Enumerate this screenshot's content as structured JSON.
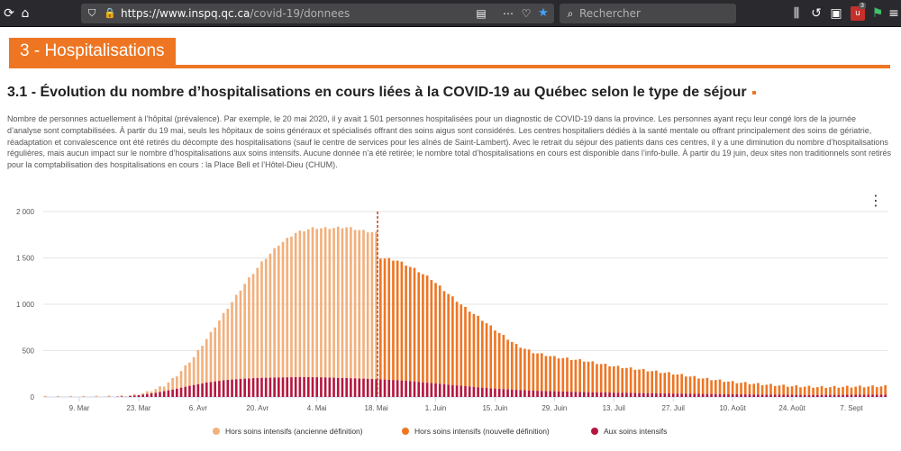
{
  "browser": {
    "url_host": "https://www.inspq.qc.ca",
    "url_path": "/covid-19/donnees",
    "search_placeholder": "Rechercher",
    "addon_badge": "3"
  },
  "section": {
    "title": "3 - Hospitalisations"
  },
  "chart_heading": "3.1 - Évolution du nombre d’hospitalisations en cours liées à la COVID-19 au Québec selon le type de séjour",
  "description": "Nombre de personnes actuellement à l’hôpital (prévalence). Par exemple, le 20 mai 2020, il y avait 1 501 personnes hospitalisées pour un diagnostic de COVID-19 dans la province. Les personnes ayant reçu leur congé lors de la journée d’analyse sont comptabilisées. À partir du 19 mai, seuls les hôpitaux de soins généraux et spécialisés offrant des soins aigus sont considérés. Les centres hospitaliers dédiés à la santé mentale ou offrant principalement des soins de gériatrie, réadaptation et convalescence ont été retirés du décompte des hospitalisations (sauf le centre de services pour les aînés de Saint-Lambert). Avec le retrait du séjour des patients dans ces centres, il y a une diminution du nombre d’hospitalisations régulières, mais aucun impact sur le nombre d’hospitalisations aux soins intensifs. Aucune donnée n’a été retirée; le nombre total d’hospitalisations en cours est disponible dans l’info-bulle. À partir du 19 juin, deux sites non traditionnels sont retirés pour la comptabilisation des hospitalisations en cours : la Place Bell et l’Hôtel-Dieu (CHUM).",
  "chart_data": {
    "type": "bar",
    "stacked": true,
    "title": "",
    "xlabel": "",
    "ylabel": "",
    "ylim": [
      0,
      2000
    ],
    "y_ticks": [
      "0",
      "500",
      "1 000",
      "1 500",
      "2 000"
    ],
    "x_tick_labels": [
      "9. Mar",
      "23. Mar",
      "6. Avr",
      "20. Avr",
      "4. Mai",
      "18. Mai",
      "1. Juin",
      "15. Juin",
      "29. Juin",
      "13. Juil",
      "27. Juil",
      "10. Août",
      "24. Août",
      "7. Sept"
    ],
    "first_day": "2020-03-01",
    "day_count": 199,
    "definition_change_day": 79,
    "series": [
      {
        "name": "Hors soins intensifs (ancienne définition)",
        "color": "#f2b07c"
      },
      {
        "name": "Hors soins intensifs (nouvelle définition)",
        "color": "#ee7623"
      },
      {
        "name": "Aux soins intensifs",
        "color": "#b5173f"
      }
    ],
    "total_keypoints": [
      [
        0,
        0
      ],
      [
        10,
        0
      ],
      [
        18,
        5
      ],
      [
        21,
        20
      ],
      [
        24,
        50
      ],
      [
        28,
        120
      ],
      [
        31,
        230
      ],
      [
        35,
        430
      ],
      [
        39,
        690
      ],
      [
        43,
        960
      ],
      [
        47,
        1220
      ],
      [
        51,
        1450
      ],
      [
        55,
        1640
      ],
      [
        59,
        1770
      ],
      [
        63,
        1820
      ],
      [
        67,
        1820
      ],
      [
        71,
        1830
      ],
      [
        75,
        1790
      ],
      [
        78,
        1770
      ],
      [
        79,
        1501
      ],
      [
        83,
        1470
      ],
      [
        87,
        1380
      ],
      [
        91,
        1270
      ],
      [
        95,
        1110
      ],
      [
        99,
        960
      ],
      [
        103,
        830
      ],
      [
        107,
        690
      ],
      [
        111,
        560
      ],
      [
        115,
        480
      ],
      [
        120,
        430
      ],
      [
        127,
        390
      ],
      [
        134,
        330
      ],
      [
        141,
        290
      ],
      [
        148,
        250
      ],
      [
        155,
        200
      ],
      [
        162,
        160
      ],
      [
        169,
        135
      ],
      [
        176,
        115
      ],
      [
        183,
        105
      ],
      [
        190,
        110
      ],
      [
        198,
        115
      ]
    ],
    "icu_keypoints": [
      [
        0,
        0
      ],
      [
        14,
        0
      ],
      [
        18,
        5
      ],
      [
        22,
        20
      ],
      [
        26,
        45
      ],
      [
        30,
        80
      ],
      [
        34,
        120
      ],
      [
        38,
        155
      ],
      [
        42,
        180
      ],
      [
        46,
        195
      ],
      [
        50,
        205
      ],
      [
        55,
        210
      ],
      [
        60,
        215
      ],
      [
        65,
        212
      ],
      [
        70,
        205
      ],
      [
        75,
        198
      ],
      [
        79,
        190
      ],
      [
        85,
        175
      ],
      [
        91,
        150
      ],
      [
        97,
        125
      ],
      [
        103,
        100
      ],
      [
        109,
        82
      ],
      [
        115,
        68
      ],
      [
        125,
        55
      ],
      [
        140,
        42
      ],
      [
        160,
        30
      ],
      [
        180,
        22
      ],
      [
        198,
        25
      ]
    ]
  },
  "legend": [
    "Hors soins intensifs (ancienne définition)",
    "Hors soins intensifs (nouvelle définition)",
    "Aux soins intensifs"
  ]
}
